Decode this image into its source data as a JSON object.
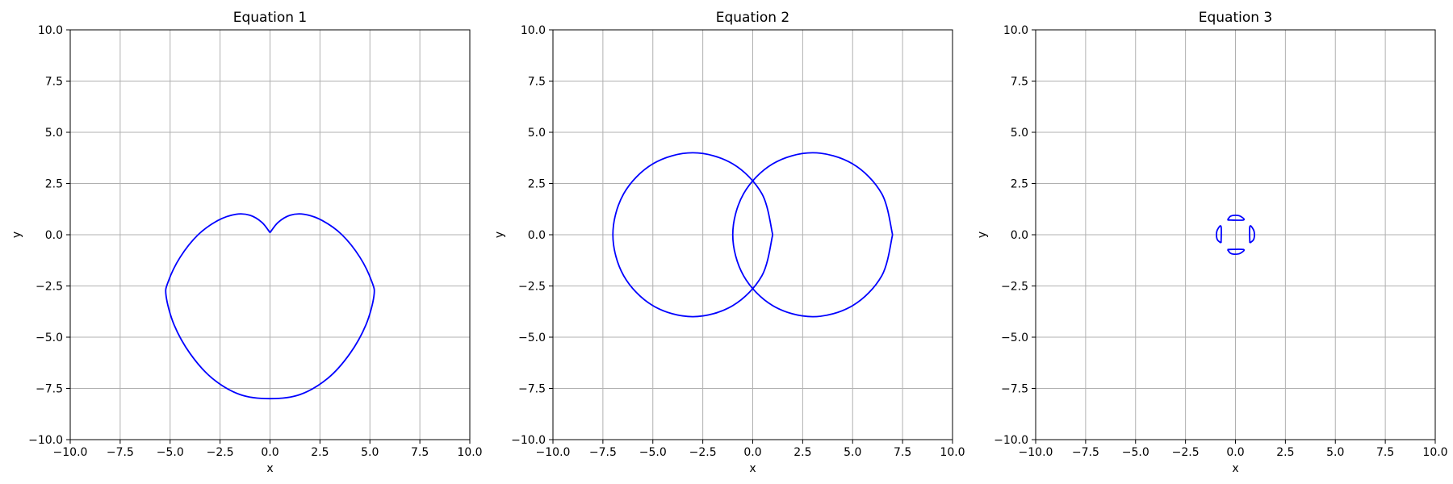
{
  "figure": {
    "background": "#ffffff",
    "line_color": "#0000ff",
    "grid_color": "#b0b0b0"
  },
  "chart_data": [
    {
      "type": "line",
      "title": "Equation 1",
      "xlabel": "x",
      "ylabel": "y",
      "xlim": [
        -10,
        10
      ],
      "ylim": [
        -10,
        10
      ],
      "xticks": [
        "−10.0",
        "−7.5",
        "−5.0",
        "−2.5",
        "0.0",
        "2.5",
        "5.0",
        "7.5",
        "10.0"
      ],
      "yticks": [
        "−10.0",
        "−7.5",
        "−5.0",
        "−2.5",
        "0.0",
        "2.5",
        "5.0",
        "7.5",
        "10.0"
      ],
      "grid": true,
      "series": [
        {
          "color": "#0000ff",
          "x": [
            0.0,
            0.4,
            1.0,
            1.7,
            2.6,
            3.6,
            4.5,
            5.1,
            5.2,
            4.8,
            4.0,
            2.9,
            1.5,
            0.0,
            -1.5,
            -2.9,
            -4.0,
            -4.8,
            -5.2,
            -5.1,
            -4.5,
            -3.6,
            -2.6,
            -1.7,
            -1.0,
            -0.4,
            0.0
          ],
          "y": [
            0.1,
            0.6,
            0.95,
            1.0,
            0.7,
            0.0,
            -1.1,
            -2.3,
            -3.0,
            -4.4,
            -5.8,
            -7.0,
            -7.8,
            -8.0,
            -7.8,
            -7.0,
            -5.8,
            -4.4,
            -3.0,
            -2.3,
            -1.1,
            0.0,
            0.7,
            1.0,
            0.95,
            0.6,
            0.1
          ]
        }
      ]
    },
    {
      "type": "line",
      "title": "Equation 2",
      "xlabel": "x",
      "ylabel": "y",
      "xlim": [
        -10,
        10
      ],
      "ylim": [
        -10,
        10
      ],
      "xticks": [
        "−10.0",
        "−7.5",
        "−5.0",
        "−2.5",
        "0.0",
        "2.5",
        "5.0",
        "7.5",
        "10.0"
      ],
      "yticks": [
        "−10.0",
        "−7.5",
        "−5.0",
        "−2.5",
        "0.0",
        "2.5",
        "5.0",
        "7.5",
        "10.0"
      ],
      "grid": true,
      "series": [
        {
          "color": "#0000ff",
          "x": [
            1.0,
            0.46,
            -1.0,
            -3.0,
            -5.0,
            -6.46,
            -7.0,
            -6.46,
            -5.0,
            -3.0,
            -1.0,
            0.46,
            1.0
          ],
          "y": [
            0.0,
            2.0,
            3.46,
            4.0,
            3.46,
            2.0,
            0.0,
            -2.0,
            -3.46,
            -4.0,
            -3.46,
            -2.0,
            0.0
          ]
        },
        {
          "color": "#0000ff",
          "x": [
            7.0,
            6.46,
            5.0,
            3.0,
            1.0,
            -0.46,
            -1.0,
            -0.46,
            1.0,
            3.0,
            5.0,
            6.46,
            7.0
          ],
          "y": [
            0.0,
            2.0,
            3.46,
            4.0,
            3.46,
            2.0,
            0.0,
            -2.0,
            -3.46,
            -4.0,
            -3.46,
            -2.0,
            0.0
          ]
        }
      ]
    },
    {
      "type": "line",
      "title": "Equation 3",
      "xlabel": "x",
      "ylabel": "y",
      "xlim": [
        -10,
        10
      ],
      "ylim": [
        -10,
        10
      ],
      "xticks": [
        "−10.0",
        "−7.5",
        "−5.0",
        "−2.5",
        "0.0",
        "2.5",
        "5.0",
        "7.5",
        "10.0"
      ],
      "yticks": [
        "−10.0",
        "−7.5",
        "−5.0",
        "−2.5",
        "0.0",
        "2.5",
        "5.0",
        "7.5",
        "10.0"
      ],
      "grid": true,
      "series": [
        {
          "color": "#0000ff",
          "x": [
            -0.4,
            -0.25,
            0.0,
            0.25,
            0.4,
            -0.4
          ],
          "y": [
            0.72,
            0.9,
            0.95,
            0.9,
            0.72,
            0.72
          ]
        },
        {
          "color": "#0000ff",
          "x": [
            -0.4,
            -0.25,
            0.0,
            0.25,
            0.4,
            -0.4
          ],
          "y": [
            -0.72,
            -0.9,
            -0.95,
            -0.9,
            -0.72,
            -0.72
          ]
        },
        {
          "color": "#0000ff",
          "x": [
            -0.72,
            -0.9,
            -0.95,
            -0.9,
            -0.72,
            -0.72
          ],
          "y": [
            -0.4,
            -0.25,
            0.0,
            0.25,
            0.4,
            -0.4
          ]
        },
        {
          "color": "#0000ff",
          "x": [
            0.72,
            0.9,
            0.95,
            0.9,
            0.72,
            0.72
          ],
          "y": [
            -0.4,
            -0.25,
            0.0,
            0.25,
            0.4,
            -0.4
          ]
        }
      ]
    }
  ]
}
